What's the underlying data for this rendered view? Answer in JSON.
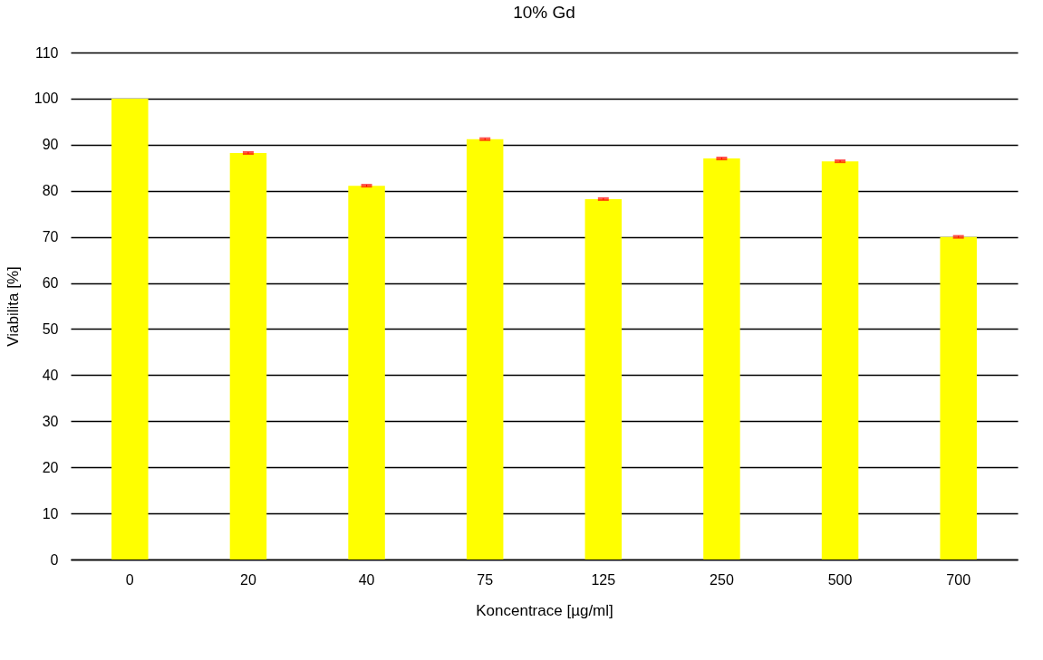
{
  "chart_data": {
    "type": "bar",
    "title": "10% Gd",
    "xlabel": "Koncentrace [µg/ml]",
    "ylabel": "Viabilita [%]",
    "categories": [
      "0",
      "20",
      "40",
      "75",
      "125",
      "250",
      "500",
      "700"
    ],
    "values": [
      100,
      88.2,
      81.1,
      91.2,
      78.2,
      87.0,
      86.4,
      70.0
    ],
    "errors": [
      null,
      0.2,
      0.2,
      0.2,
      0.2,
      0.2,
      0.2,
      0.2
    ],
    "color": "#ffff00",
    "ylim": [
      0,
      110
    ],
    "yticks": [
      0,
      10,
      20,
      30,
      40,
      50,
      60,
      70,
      80,
      90,
      100,
      110
    ],
    "grid": "y"
  }
}
